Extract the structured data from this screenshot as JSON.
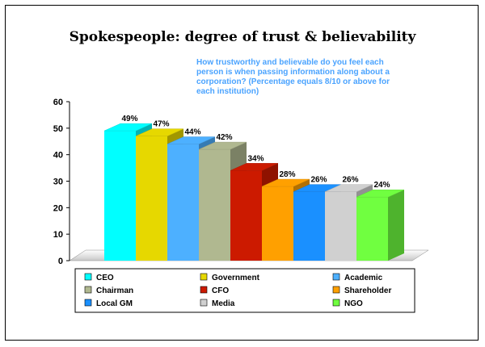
{
  "chart_data": {
    "type": "bar",
    "title": "Spokespeople: degree of trust & believability",
    "subtitle_lines": [
      "How trustworthy and believable do you feel each",
      "person is when passing information along about a",
      "corporation? (Percentage equals 8/10 or above for",
      "each institution)"
    ],
    "categories": [
      "CEO",
      "Government",
      "Academic",
      "Chairman",
      "CFO",
      "Shareholder",
      "Local GM",
      "Media",
      "NGO"
    ],
    "values": [
      49,
      47,
      44,
      42,
      34,
      28,
      26,
      26,
      24
    ],
    "value_labels": [
      "49%",
      "47%",
      "44%",
      "42%",
      "34%",
      "28%",
      "26%",
      "26%",
      "24%"
    ],
    "colors": [
      "#00ffff",
      "#e6d800",
      "#4db0ff",
      "#b0b890",
      "#cc1a00",
      "#ffa000",
      "#1a90ff",
      "#d0d0d0",
      "#70ff40"
    ],
    "ylim": [
      0,
      60
    ],
    "yticks": [
      "0",
      "10",
      "20",
      "30",
      "40",
      "50",
      "60"
    ],
    "grid": false,
    "legend_position": "bottom"
  }
}
